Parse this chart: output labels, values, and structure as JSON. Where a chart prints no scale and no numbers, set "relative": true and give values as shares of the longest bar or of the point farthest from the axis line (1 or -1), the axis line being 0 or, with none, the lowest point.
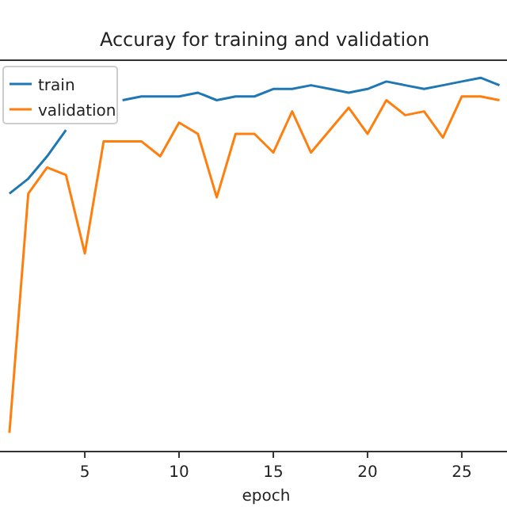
{
  "chart_data": {
    "type": "line",
    "title": "Accuray for training and validation",
    "xlabel": "epoch",
    "relative": true,
    "x": [
      1,
      2,
      3,
      4,
      5,
      6,
      7,
      8,
      9,
      10,
      11,
      12,
      13,
      14,
      15,
      16,
      17,
      18,
      19,
      20,
      21,
      22,
      23,
      24,
      25,
      26,
      27
    ],
    "xlim": [
      0.5,
      27.4
    ],
    "xticks": [
      5,
      10,
      15,
      20,
      25
    ],
    "legend": "top left",
    "grid": false,
    "series": [
      {
        "name": "train",
        "color": "#1f77b4",
        "values": [
          0.69,
          0.73,
          0.79,
          0.86,
          null,
          null,
          0.94,
          0.95,
          0.95,
          0.95,
          0.96,
          0.94,
          0.95,
          0.95,
          0.97,
          0.97,
          0.98,
          0.97,
          0.96,
          0.97,
          0.99,
          0.98,
          0.97,
          0.98,
          0.99,
          1,
          0.98
        ]
      },
      {
        "name": "validation",
        "color": "#ff7f0e",
        "values": [
          0.05,
          0.69,
          0.76,
          0.74,
          0.53,
          0.83,
          0.83,
          0.83,
          0.79,
          0.88,
          0.85,
          0.68,
          0.85,
          0.85,
          0.8,
          0.91,
          0.8,
          0.86,
          0.92,
          0.85,
          0.94,
          0.9,
          0.91,
          0.84,
          0.95,
          0.95,
          0.94
        ]
      }
    ]
  }
}
